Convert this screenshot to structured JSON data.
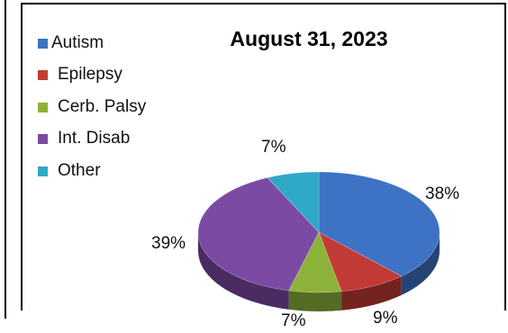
{
  "chart_data": {
    "type": "pie",
    "title": "August 31, 2023",
    "three_d": true,
    "legend_position": "left",
    "categories": [
      "Autism",
      "Epilepsy",
      "Cerb. Palsy",
      "Int. Disab",
      "Other"
    ],
    "values": [
      38,
      9,
      7,
      39,
      7
    ],
    "labels": [
      "38%",
      "9%",
      "7%",
      "39%",
      "7%"
    ],
    "colors": [
      "#3d72c4",
      "#c23a36",
      "#8cb23a",
      "#7b4aa3",
      "#30a8c8"
    ]
  }
}
